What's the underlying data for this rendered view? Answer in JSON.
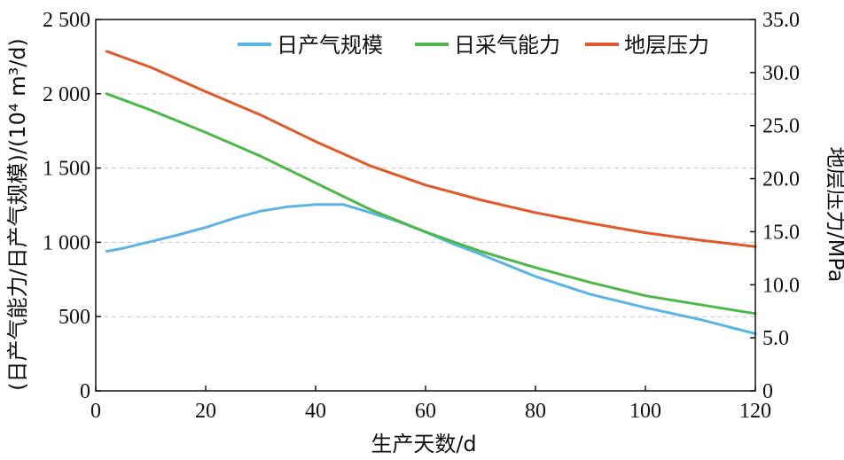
{
  "chart_data": {
    "type": "line",
    "xlabel": "生产天数/d",
    "ylabel_left": "(日产气能力/日产气规模)/(10⁴ m³/d)",
    "ylabel_right": "地层压力/MPa",
    "xlim": [
      0,
      120
    ],
    "ylim_left": [
      0,
      2500
    ],
    "ylim_right": [
      0,
      35
    ],
    "x_ticks": [
      "0",
      "20",
      "40",
      "60",
      "80",
      "100",
      "120"
    ],
    "y_left_ticks": [
      "0",
      "500",
      "1 000",
      "1 500",
      "2 000",
      "2 500"
    ],
    "y_right_ticks": [
      "0",
      "5.0",
      "10.0",
      "15.0",
      "20.0",
      "25.0",
      "30.0",
      "35.0"
    ],
    "grid": "horizontal dashed",
    "legend_position": "top",
    "series": [
      {
        "name": "日产气规模",
        "axis": "left",
        "color": "#5BB4E5",
        "x": [
          2,
          5,
          10,
          15,
          20,
          25,
          30,
          35,
          40,
          45,
          50,
          55,
          60,
          65,
          70,
          80,
          90,
          100,
          110,
          120
        ],
        "y": [
          940,
          960,
          1005,
          1050,
          1100,
          1160,
          1210,
          1240,
          1255,
          1255,
          1200,
          1140,
          1070,
          990,
          920,
          770,
          650,
          560,
          480,
          385
        ]
      },
      {
        "name": "日采气能力",
        "axis": "left",
        "color": "#4CB848",
        "x": [
          2,
          10,
          20,
          30,
          40,
          50,
          60,
          70,
          80,
          90,
          100,
          110,
          120
        ],
        "y": [
          2000,
          1890,
          1740,
          1580,
          1400,
          1220,
          1070,
          940,
          830,
          730,
          640,
          580,
          520
        ]
      },
      {
        "name": "地层压力",
        "axis": "right",
        "color": "#E2582A",
        "x": [
          2,
          10,
          20,
          30,
          40,
          50,
          60,
          70,
          80,
          90,
          100,
          110,
          120
        ],
        "y": [
          32.0,
          30.5,
          28.2,
          26.0,
          23.5,
          21.2,
          19.4,
          18.0,
          16.8,
          15.8,
          14.9,
          14.2,
          13.6
        ]
      }
    ]
  }
}
